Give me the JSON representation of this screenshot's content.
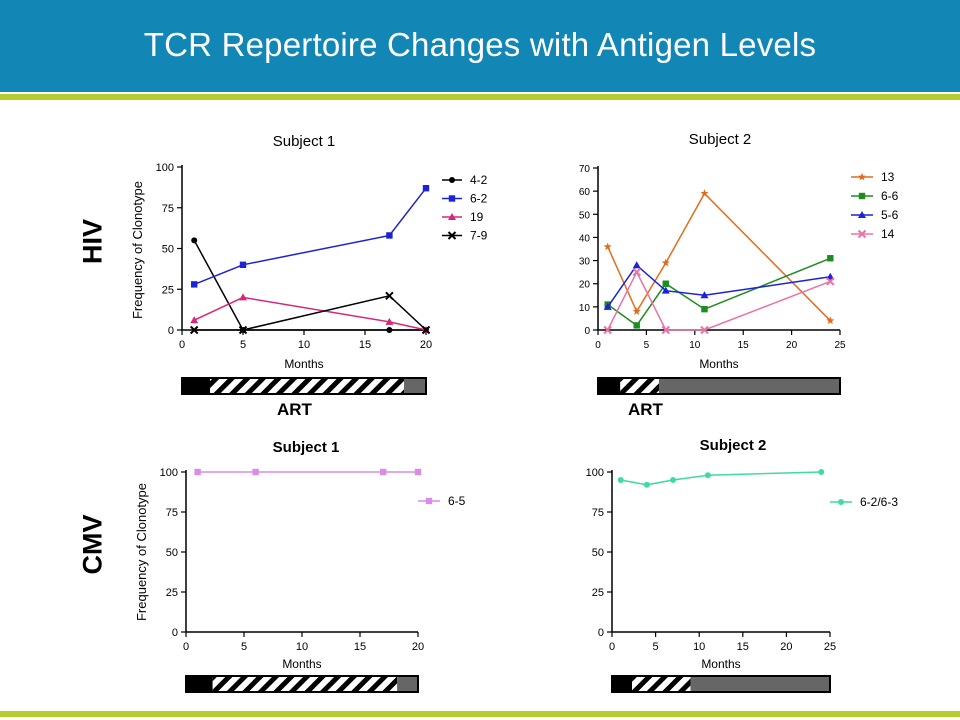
{
  "header": {
    "title": "TCR Repertoire Changes with Antigen Levels"
  },
  "row_labels": {
    "hiv": "HIV",
    "cmv": "CMV"
  },
  "art_labels": [
    "ART",
    "ART"
  ],
  "colors": {
    "header_bg": "#1287b6",
    "accent_bar": "#b6cc2e"
  },
  "chart_data": [
    {
      "id": "hiv-subject-1",
      "type": "line",
      "title": "Subject 1",
      "xlabel": "Months",
      "ylabel": "Frequency of Clonotype",
      "xlim": [
        0,
        20
      ],
      "ylim": [
        0,
        100
      ],
      "xticks": [
        "0",
        "5",
        "10",
        "15",
        "20"
      ],
      "yticks": [
        "0",
        "25",
        "50",
        "75",
        "100"
      ],
      "legend_position": "right",
      "series": [
        {
          "name": "4-2",
          "color": "#000000",
          "marker": "circle",
          "x": [
            1,
            5,
            17,
            20
          ],
          "y": [
            55,
            0,
            0,
            0
          ]
        },
        {
          "name": "6-2",
          "color": "#1c22d6",
          "marker": "square",
          "x": [
            1,
            5,
            17,
            20
          ],
          "y": [
            28,
            40,
            58,
            87
          ]
        },
        {
          "name": "19",
          "color": "#d6287a",
          "marker": "triangle",
          "x": [
            1,
            5,
            17,
            20
          ],
          "y": [
            6,
            20,
            5,
            0
          ]
        },
        {
          "name": "7-9",
          "color": "#000000",
          "marker": "x",
          "x": [
            1,
            5,
            17,
            20
          ],
          "y": [
            0,
            0,
            21,
            0
          ]
        }
      ],
      "treatment_bar": [
        {
          "from": 0,
          "to": 2.3,
          "fill": "black"
        },
        {
          "from": 2.3,
          "to": 18.2,
          "fill": "hatch"
        },
        {
          "from": 18.2,
          "to": 20,
          "fill": "gray"
        }
      ]
    },
    {
      "id": "hiv-subject-2",
      "type": "line",
      "title": "Subject 2",
      "xlabel": "Months",
      "ylabel": "",
      "xlim": [
        0,
        25
      ],
      "ylim": [
        0,
        70
      ],
      "xticks": [
        "0",
        "5",
        "10",
        "15",
        "20",
        "25"
      ],
      "yticks": [
        "0",
        "10",
        "20",
        "30",
        "40",
        "50",
        "60",
        "70"
      ],
      "legend_position": "right",
      "series": [
        {
          "name": "13",
          "color": "#e36c1c",
          "marker": "star",
          "x": [
            1,
            4,
            7,
            11,
            24
          ],
          "y": [
            36,
            8,
            29,
            59,
            4
          ]
        },
        {
          "name": "6-6",
          "color": "#1e8c1e",
          "marker": "square",
          "x": [
            1,
            4,
            7,
            11,
            24
          ],
          "y": [
            11,
            2,
            20,
            9,
            31
          ]
        },
        {
          "name": "5-6",
          "color": "#1c22d6",
          "marker": "triangle",
          "x": [
            1,
            4,
            7,
            11,
            24
          ],
          "y": [
            10,
            28,
            17,
            15,
            23
          ]
        },
        {
          "name": "14",
          "color": "#e873a8",
          "marker": "x",
          "x": [
            1,
            4,
            7,
            11,
            24
          ],
          "y": [
            0,
            25,
            0,
            0,
            21
          ]
        }
      ],
      "treatment_bar": [
        {
          "from": 0,
          "to": 2.3,
          "fill": "black"
        },
        {
          "from": 2.3,
          "to": 6.3,
          "fill": "hatch"
        },
        {
          "from": 6.3,
          "to": 25,
          "fill": "gray"
        }
      ]
    },
    {
      "id": "cmv-subject-1",
      "type": "line",
      "title": "Subject 1",
      "xlabel": "Months",
      "ylabel": "Frequency of Clonotype",
      "xlim": [
        0,
        20
      ],
      "ylim": [
        0,
        100
      ],
      "xticks": [
        "0",
        "5",
        "10",
        "15",
        "20"
      ],
      "yticks": [
        "0",
        "25",
        "50",
        "75",
        "100"
      ],
      "legend_position": "right",
      "series": [
        {
          "name": "6-5",
          "color": "#d98ce6",
          "marker": "square",
          "x": [
            1,
            6,
            17,
            20
          ],
          "y": [
            100,
            100,
            100,
            100
          ]
        }
      ],
      "treatment_bar": [
        {
          "from": 0,
          "to": 2.3,
          "fill": "black"
        },
        {
          "from": 2.3,
          "to": 18.2,
          "fill": "hatch"
        },
        {
          "from": 18.2,
          "to": 20,
          "fill": "gray"
        }
      ]
    },
    {
      "id": "cmv-subject-2",
      "type": "line",
      "title": "Subject 2",
      "xlabel": "Months",
      "ylabel": "",
      "xlim": [
        0,
        25
      ],
      "ylim": [
        0,
        100
      ],
      "xticks": [
        "0",
        "5",
        "10",
        "15",
        "20",
        "25"
      ],
      "yticks": [
        "0",
        "25",
        "50",
        "75",
        "100"
      ],
      "legend_position": "right",
      "series": [
        {
          "name": "6-2/6-3",
          "color": "#3fdc9c",
          "marker": "circle",
          "x": [
            1,
            4,
            7,
            11,
            24
          ],
          "y": [
            95,
            92,
            95,
            98,
            100
          ]
        }
      ],
      "treatment_bar": [
        {
          "from": 0,
          "to": 2.3,
          "fill": "black"
        },
        {
          "from": 2.3,
          "to": 9,
          "fill": "hatch"
        },
        {
          "from": 9,
          "to": 25,
          "fill": "gray"
        }
      ]
    }
  ]
}
